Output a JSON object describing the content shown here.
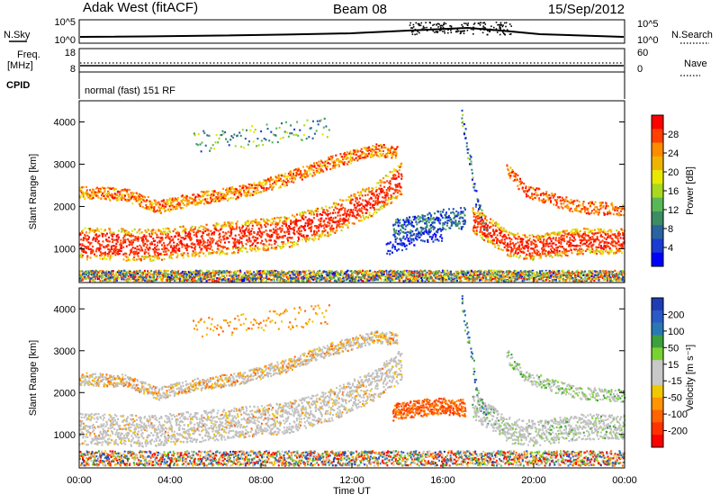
{
  "header": {
    "station": "Adak West (fitACF)",
    "beam": "Beam 08",
    "date": "15/Sep/2012"
  },
  "nsky_panel": {
    "left_label": "N.Sky",
    "right_label": "N.Search",
    "left_ticks": [
      "10^5",
      "10^0"
    ],
    "right_ticks": [
      "10^5",
      "10^0"
    ]
  },
  "freq_panel": {
    "left_label_1": "Freq.",
    "left_label_2": "[MHz]",
    "right_label": "Nave",
    "left_ticks": [
      "18",
      "8"
    ],
    "right_ticks": [
      "60",
      "0"
    ]
  },
  "cpid_panel": {
    "label": "CPID",
    "text": "normal (fast) 151 RF"
  },
  "chart_data": [
    {
      "type": "heatmap",
      "quantity": "Power",
      "ylabel": "Slant Range [km]",
      "ylim": [
        200,
        4500
      ],
      "y_ticks": [
        "1000",
        "2000",
        "3000",
        "4000"
      ],
      "xlabel": "Time UT",
      "xlim": [
        "00:00",
        "24:00"
      ],
      "colorbar_label": "Power [dB]",
      "colorbar_ticks": [
        "28",
        "24",
        "20",
        "16",
        "12",
        "8",
        "4"
      ],
      "colorbar_colors": [
        "#ff0000",
        "#ff4000",
        "#ff8c00",
        "#f0b400",
        "#e8e800",
        "#a8d820",
        "#58b858",
        "#3c8c64",
        "#2a64a0",
        "#1a3cd2",
        "#0000ff"
      ]
    },
    {
      "type": "heatmap",
      "quantity": "Velocity",
      "ylabel": "Slant Range [km]",
      "ylim": [
        200,
        4500
      ],
      "y_ticks": [
        "1000",
        "2000",
        "3000",
        "4000"
      ],
      "xlabel": "Time UT",
      "x_ticks": [
        "00:00",
        "04:00",
        "08:00",
        "12:00",
        "16:00",
        "20:00",
        "00:00"
      ],
      "colorbar_label": "Velocity [m s⁻¹]",
      "colorbar_ticks": [
        "200",
        "100",
        "50",
        "15",
        "-15",
        "-50",
        "-100",
        "-200"
      ],
      "colorbar_colors": [
        "#1e3cb4",
        "#2a5ac8",
        "#2878b4",
        "#3ca03c",
        "#78d232",
        "#c8c8c8",
        "#c8c8c8",
        "#f0c800",
        "#ff9600",
        "#ff6400",
        "#ff3200",
        "#ff0000"
      ]
    }
  ],
  "colors": {
    "frame": "#000000",
    "gray_ground": "#c0c0c0"
  }
}
